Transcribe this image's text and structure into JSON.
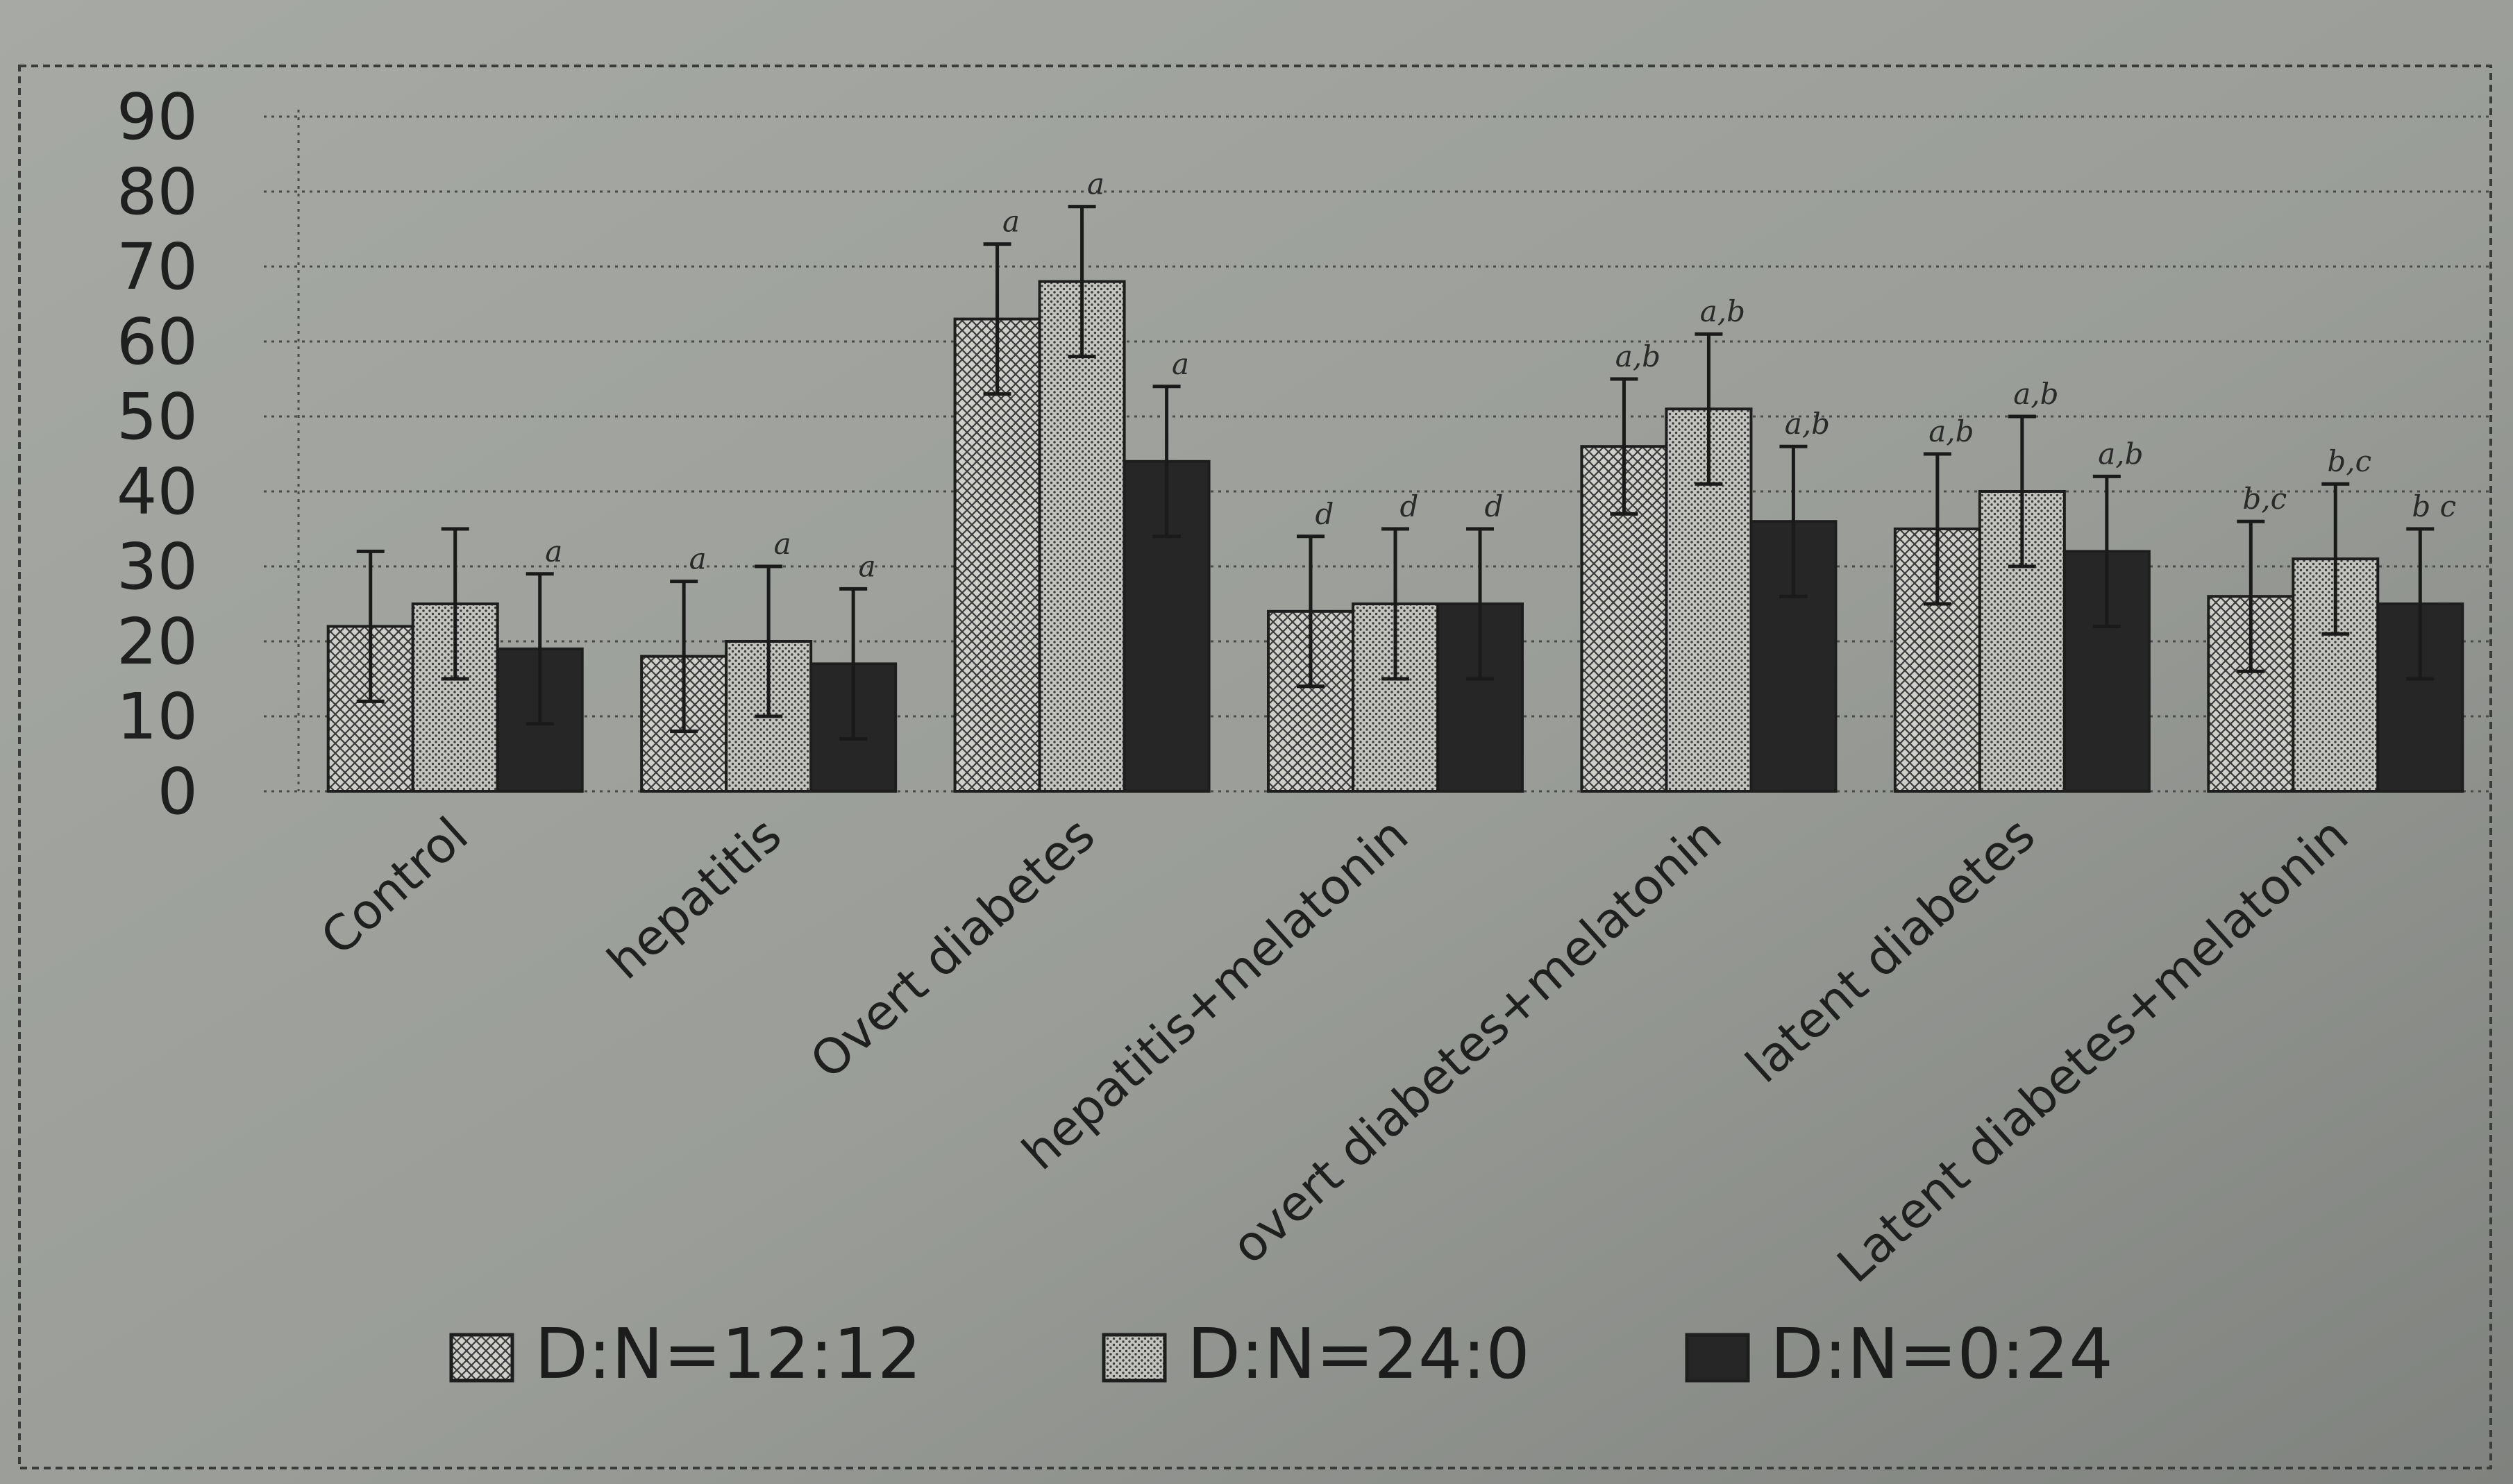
{
  "chart_data": {
    "type": "bar",
    "title": "",
    "xlabel": "",
    "ylabel": "",
    "ylim": [
      0,
      90
    ],
    "yticks": [
      0,
      10,
      20,
      30,
      40,
      50,
      60,
      70,
      80,
      90
    ],
    "grid": true,
    "legend_position": "bottom",
    "categories": [
      "Control",
      "hepatitis",
      "Overt diabetes",
      "hepatitis+melatonin",
      "overt diabetes+melatonin",
      "latent diabetes",
      "Latent diabetes+melatonin"
    ],
    "series": [
      {
        "name": "D:N=12:12",
        "pattern": "crosshatch",
        "color": "#c9c9c5",
        "values": [
          22,
          18,
          63,
          24,
          46,
          35,
          26
        ],
        "errors": [
          10,
          10,
          10,
          10,
          9,
          10,
          10
        ],
        "labels": [
          "",
          "a",
          "a",
          "d",
          "a,b",
          "a,b",
          "b,c"
        ]
      },
      {
        "name": "D:N=24:0",
        "pattern": "dotted",
        "color": "#b9b9b5",
        "values": [
          25,
          20,
          68,
          25,
          51,
          40,
          31
        ],
        "errors": [
          10,
          10,
          10,
          10,
          10,
          10,
          10
        ],
        "labels": [
          "",
          "a",
          "a",
          "d",
          "a,b",
          "a,b",
          "b,c"
        ]
      },
      {
        "name": "D:N=0:24",
        "pattern": "solid",
        "color": "#2a2a2a",
        "values": [
          19,
          17,
          44,
          25,
          36,
          32,
          25
        ],
        "errors": [
          10,
          10,
          10,
          10,
          10,
          10,
          10
        ],
        "labels": [
          "a",
          "a",
          "a",
          "d",
          "a,b",
          "a,b",
          "b\nc"
        ]
      }
    ]
  }
}
